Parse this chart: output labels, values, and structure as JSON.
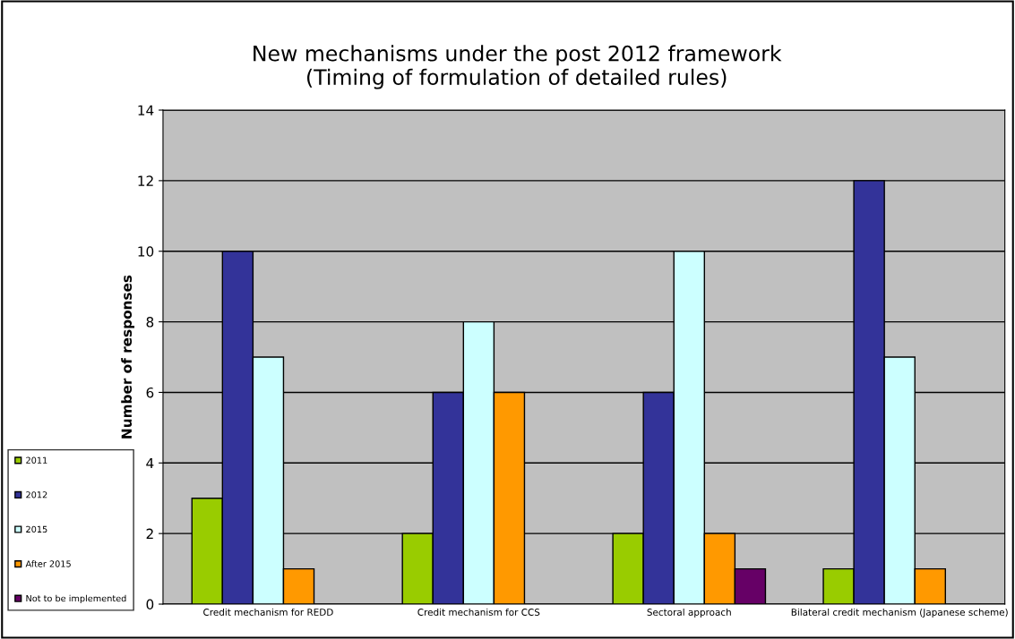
{
  "chart_data": {
    "type": "bar",
    "title": "New mechanisms under the post 2012 framework\n(Timing of formulation of detailed rules)",
    "ylabel": "Number of responses",
    "categories": [
      "Credit mechanism for REDD",
      "Credit mechanism for CCS",
      "Sectoral approach",
      "Bilateral credit mechanism (Japanese scheme)"
    ],
    "series": [
      {
        "name": "2011",
        "color": "#99cc00",
        "values": [
          3,
          2,
          2,
          1
        ]
      },
      {
        "name": "2012",
        "color": "#333399",
        "values": [
          10,
          6,
          6,
          12
        ]
      },
      {
        "name": "2015",
        "color": "#ccffff",
        "values": [
          7,
          8,
          10,
          7
        ]
      },
      {
        "name": "After 2015",
        "color": "#ff9900",
        "values": [
          1,
          6,
          2,
          1
        ]
      },
      {
        "name": "Not to be implemented",
        "color": "#660066",
        "values": [
          null,
          null,
          1,
          null
        ]
      }
    ],
    "ylim": [
      0,
      14
    ],
    "yticks": [
      0,
      2,
      4,
      6,
      8,
      10,
      12,
      14
    ],
    "grid": "y",
    "legend": "left"
  }
}
